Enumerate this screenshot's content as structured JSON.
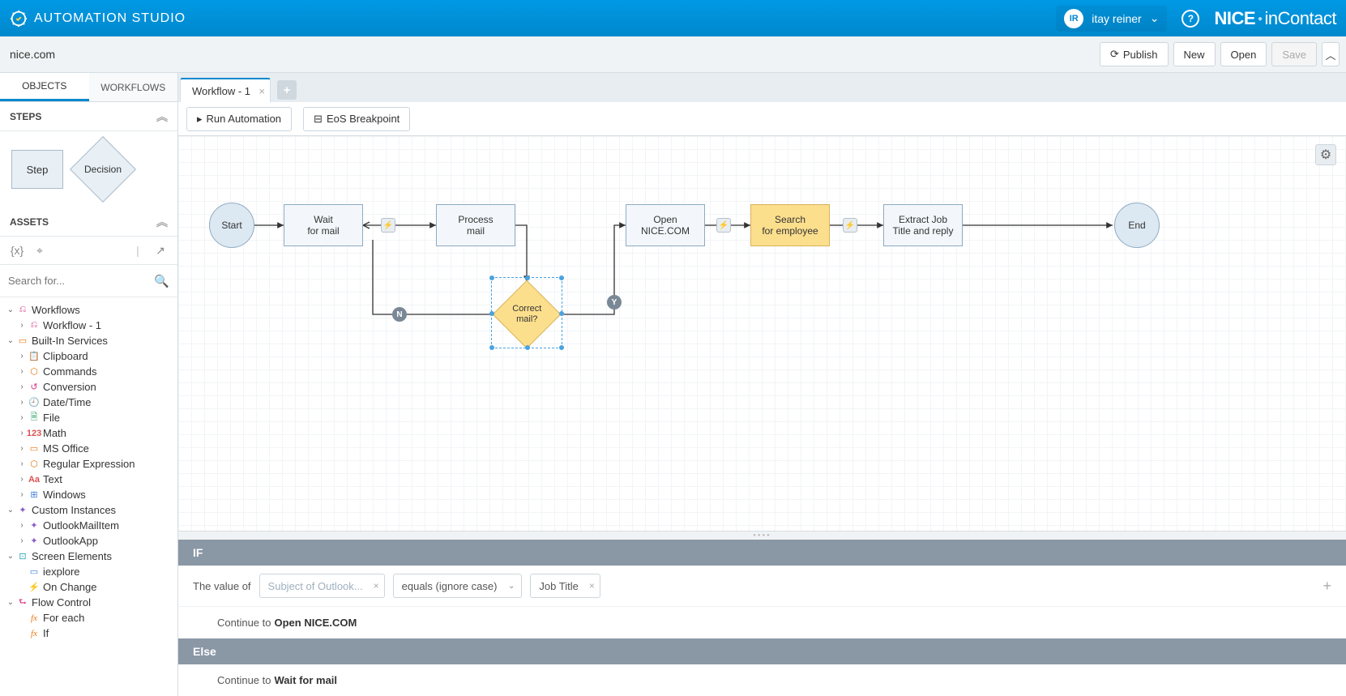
{
  "header": {
    "app_title": "AUTOMATION STUDIO",
    "user_initials": "IR",
    "user_name": "itay reiner",
    "brand_bold": "NICE",
    "brand_light": "inContact"
  },
  "toolbar": {
    "breadcrumb": "nice.com",
    "publish": "Publish",
    "new": "New",
    "open": "Open",
    "save": "Save"
  },
  "side_tabs": {
    "objects": "OBJECTS",
    "workflows": "WORKFLOWS"
  },
  "panels": {
    "steps": "STEPS",
    "assets": "ASSETS",
    "step_label": "Step",
    "decision_label": "Decision",
    "search_placeholder": "Search for..."
  },
  "tree": [
    {
      "d": 0,
      "exp": "v",
      "icon": "workflow",
      "label": "Workflows"
    },
    {
      "d": 1,
      "exp": ">",
      "icon": "workflow",
      "label": "Workflow - 1"
    },
    {
      "d": 0,
      "exp": "v",
      "icon": "builtin",
      "label": "Built-In Services"
    },
    {
      "d": 1,
      "exp": ">",
      "icon": "clipboard",
      "label": "Clipboard"
    },
    {
      "d": 1,
      "exp": ">",
      "icon": "commands",
      "label": "Commands"
    },
    {
      "d": 1,
      "exp": ">",
      "icon": "conversion",
      "label": "Conversion"
    },
    {
      "d": 1,
      "exp": ">",
      "icon": "datetime",
      "label": "Date/Time"
    },
    {
      "d": 1,
      "exp": ">",
      "icon": "file",
      "label": "File"
    },
    {
      "d": 1,
      "exp": ">",
      "icon": "math",
      "label": "Math"
    },
    {
      "d": 1,
      "exp": ">",
      "icon": "msoffice",
      "label": "MS Office"
    },
    {
      "d": 1,
      "exp": ">",
      "icon": "regex",
      "label": "Regular Expression"
    },
    {
      "d": 1,
      "exp": ">",
      "icon": "text",
      "label": "Text"
    },
    {
      "d": 1,
      "exp": ">",
      "icon": "windows",
      "label": "Windows"
    },
    {
      "d": 0,
      "exp": "v",
      "icon": "custom",
      "label": "Custom Instances"
    },
    {
      "d": 1,
      "exp": ">",
      "icon": "custom",
      "label": "OutlookMailItem"
    },
    {
      "d": 1,
      "exp": ">",
      "icon": "custom",
      "label": "OutlookApp"
    },
    {
      "d": 0,
      "exp": "v",
      "icon": "screen",
      "label": "Screen Elements"
    },
    {
      "d": 1,
      "exp": "",
      "icon": "window",
      "label": "iexplore"
    },
    {
      "d": 1,
      "exp": "",
      "icon": "bolt",
      "label": "On Change"
    },
    {
      "d": 0,
      "exp": "v",
      "icon": "flow",
      "label": "Flow Control"
    },
    {
      "d": 1,
      "exp": "",
      "icon": "fx",
      "label": "For each"
    },
    {
      "d": 1,
      "exp": "",
      "icon": "fx",
      "label": "If"
    }
  ],
  "doc_tab": {
    "label": "Workflow - 1"
  },
  "canvas_buttons": {
    "run": "Run Automation",
    "eos": "EoS Breakpoint"
  },
  "nodes": {
    "start": "Start",
    "wait": "Wait\nfor mail",
    "process": "Process\nmail",
    "correct": "Correct\nmail?",
    "open": "Open\nNICE.COM",
    "search": "Search\nfor employee",
    "extract": "Extract Job\nTitle and reply",
    "end": "End"
  },
  "badges": {
    "n": "N",
    "y": "Y"
  },
  "cond": {
    "if": "IF",
    "else": "Else",
    "value_of": "The value of",
    "subject": "Subject of Outlook...",
    "operator": "equals (ignore case)",
    "compare": "Job Title",
    "continue": "Continue to",
    "if_target": "Open NICE.COM",
    "else_target": "Wait for mail"
  }
}
